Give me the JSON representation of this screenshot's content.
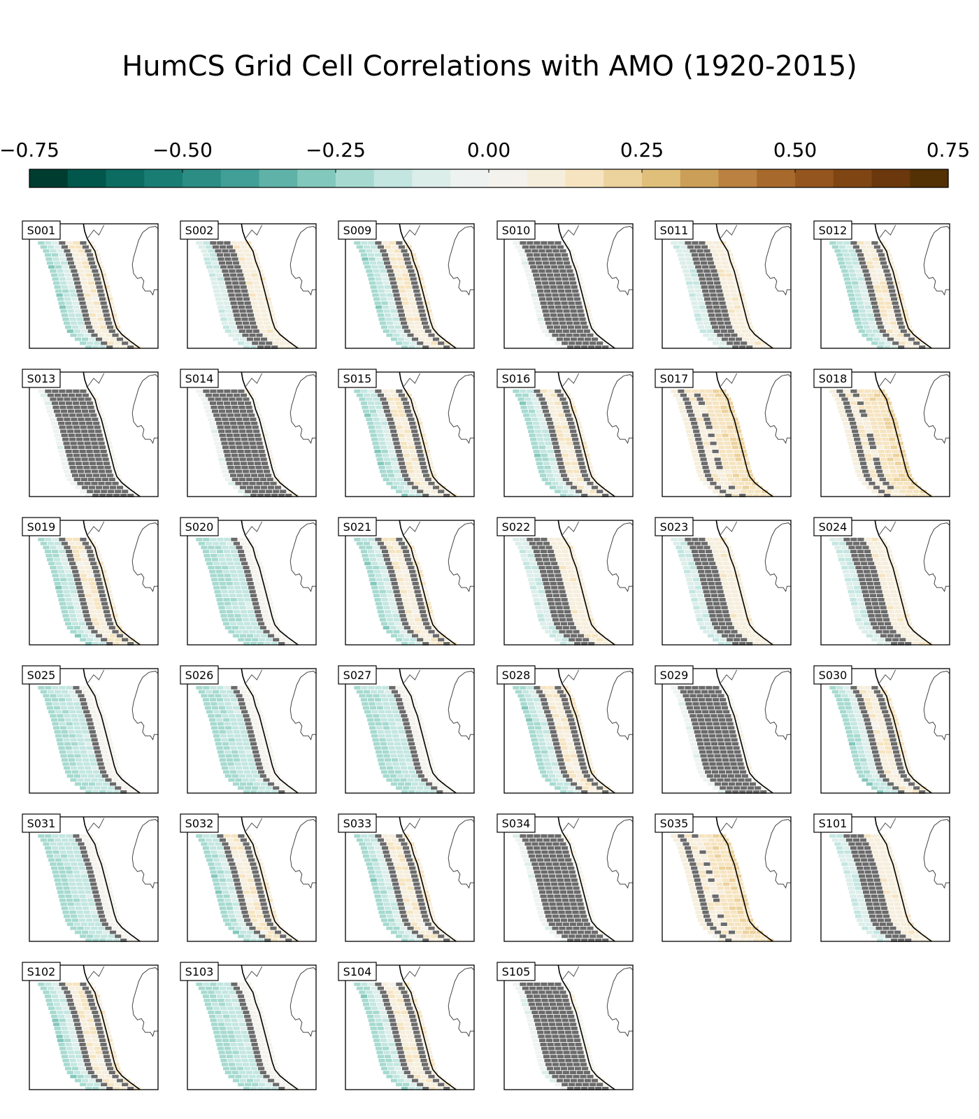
{
  "title": "HumCS Grid Cell Correlations with AMO (1920-2015)",
  "colorbar": {
    "vmin": -0.75,
    "vmax": 0.75,
    "tick_labels": [
      "−0.75",
      "−0.50",
      "−0.25",
      "0.00",
      "0.25",
      "0.50",
      "0.75"
    ],
    "colors": [
      "#003c30",
      "#01574c",
      "#0d6c62",
      "#1a7d73",
      "#2b8d84",
      "#419f97",
      "#5fb2a8",
      "#83c8bc",
      "#a6dad0",
      "#c3e6e1",
      "#dceeea",
      "#eef3f2",
      "#f4f2ec",
      "#f6eedd",
      "#f6e4c0",
      "#ecd29c",
      "#dfbf7a",
      "#cc9f58",
      "#bb8140",
      "#a86a2c",
      "#94561e",
      "#7f4613",
      "#6a380c",
      "#543005"
    ]
  },
  "chart_data": {
    "type": "heatmap",
    "title": "HumCS Grid Cell Correlations with AMO (1920-2015)",
    "colorbar_range": [
      -0.75,
      0.75
    ],
    "masked_color": "#6b6b6b",
    "panels": [
      {
        "label": "S001",
        "pattern": "mixed"
      },
      {
        "label": "S002",
        "pattern": "masked-band"
      },
      {
        "label": "S009",
        "pattern": "mixed"
      },
      {
        "label": "S010",
        "pattern": "mostly-masked"
      },
      {
        "label": "S011",
        "pattern": "masked-band"
      },
      {
        "label": "S012",
        "pattern": "mixed"
      },
      {
        "label": "S013",
        "pattern": "mostly-masked"
      },
      {
        "label": "S014",
        "pattern": "mostly-masked"
      },
      {
        "label": "S015",
        "pattern": "mixed"
      },
      {
        "label": "S016",
        "pattern": "mixed"
      },
      {
        "label": "S017",
        "pattern": "positive"
      },
      {
        "label": "S018",
        "pattern": "positive"
      },
      {
        "label": "S019",
        "pattern": "mixed"
      },
      {
        "label": "S020",
        "pattern": "negative"
      },
      {
        "label": "S021",
        "pattern": "mixed"
      },
      {
        "label": "S022",
        "pattern": "masked-band"
      },
      {
        "label": "S023",
        "pattern": "masked-band"
      },
      {
        "label": "S024",
        "pattern": "masked-band"
      },
      {
        "label": "S025",
        "pattern": "negative"
      },
      {
        "label": "S026",
        "pattern": "negative"
      },
      {
        "label": "S027",
        "pattern": "negative"
      },
      {
        "label": "S028",
        "pattern": "mixed"
      },
      {
        "label": "S029",
        "pattern": "mostly-masked"
      },
      {
        "label": "S030",
        "pattern": "mixed"
      },
      {
        "label": "S031",
        "pattern": "negative"
      },
      {
        "label": "S032",
        "pattern": "mixed"
      },
      {
        "label": "S033",
        "pattern": "mixed"
      },
      {
        "label": "S034",
        "pattern": "mostly-masked"
      },
      {
        "label": "S035",
        "pattern": "positive"
      },
      {
        "label": "S101",
        "pattern": "masked-band"
      },
      {
        "label": "S102",
        "pattern": "mixed"
      },
      {
        "label": "S103",
        "pattern": "negative"
      },
      {
        "label": "S104",
        "pattern": "mixed"
      },
      {
        "label": "S105",
        "pattern": "mostly-masked"
      }
    ]
  }
}
